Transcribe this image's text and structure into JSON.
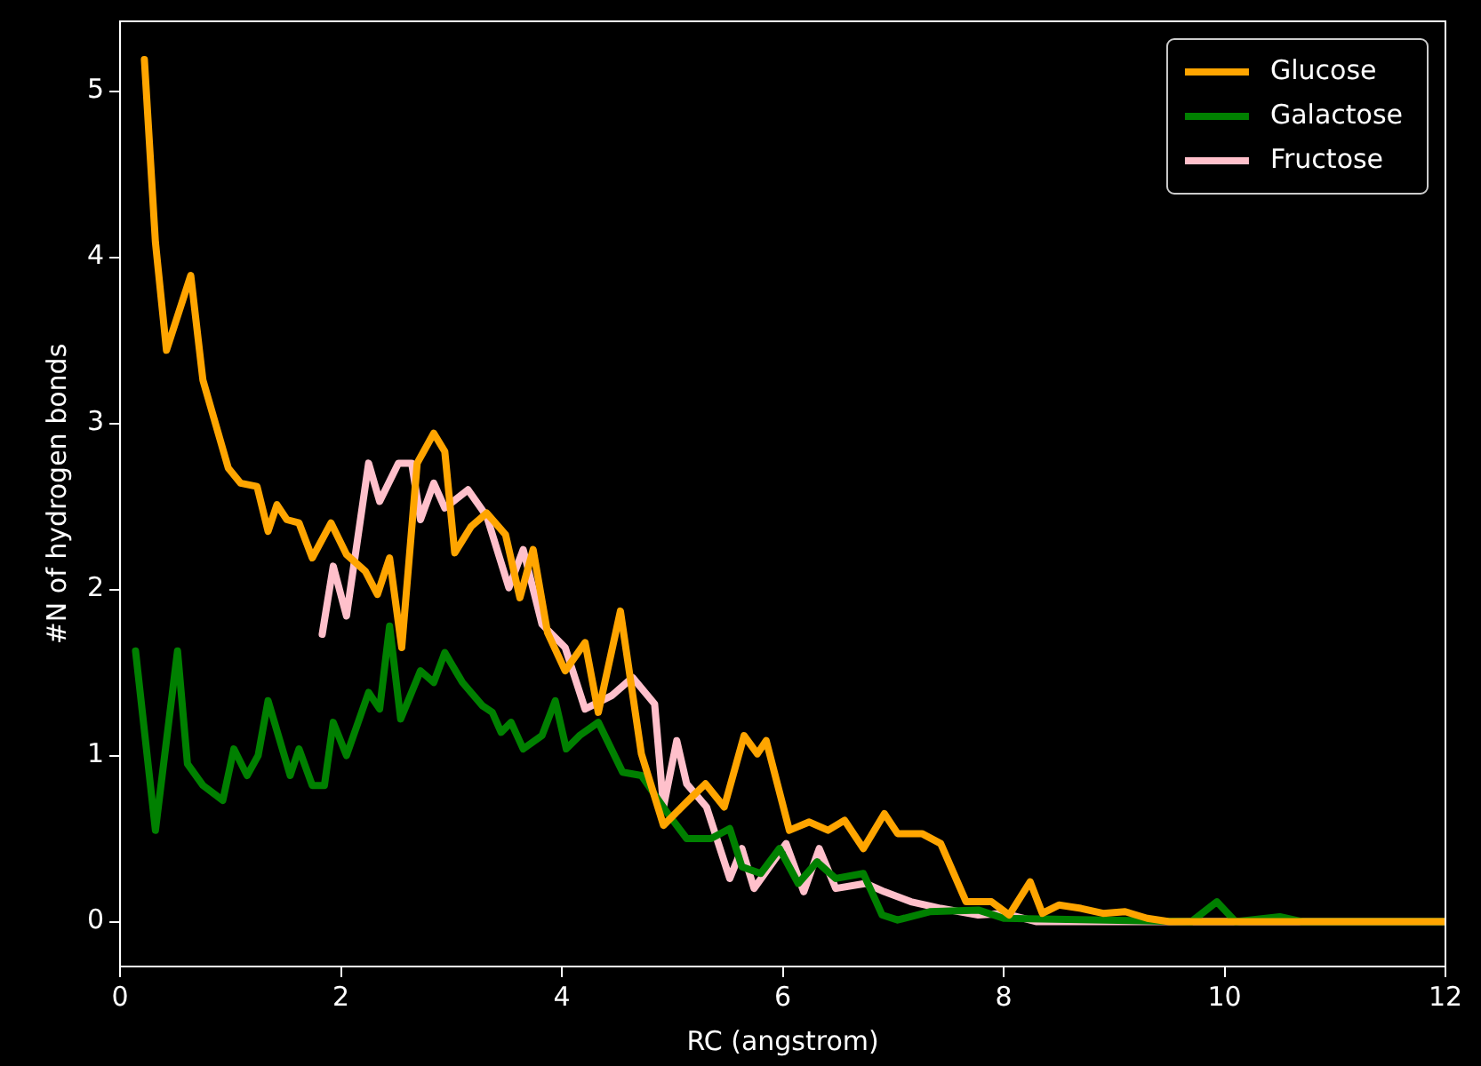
{
  "chart_data": {
    "type": "line",
    "xlabel": "RC (angstrom)",
    "ylabel": "#N of hydrogen bonds",
    "xlim": [
      0,
      12
    ],
    "xticks": [
      0,
      2,
      4,
      6,
      8,
      10,
      12
    ],
    "ylim": [
      -0.27,
      5.42
    ],
    "yticks": [
      0,
      1,
      2,
      3,
      4,
      5
    ],
    "grid": false,
    "legend": "top right",
    "marker": "none",
    "line_style": "solid",
    "series": [
      {
        "name": "Glucose",
        "color": "#ffa500",
        "x": [
          0.22,
          0.32,
          0.42,
          0.64,
          0.75,
          0.98,
          1.09,
          1.24,
          1.34,
          1.42,
          1.51,
          1.62,
          1.74,
          1.91,
          2.05,
          2.22,
          2.33,
          2.44,
          2.55,
          2.69,
          2.84,
          2.94,
          3.03,
          3.18,
          3.32,
          3.49,
          3.62,
          3.74,
          3.87,
          4.03,
          4.21,
          4.33,
          4.53,
          4.72,
          4.92,
          5.13,
          5.3,
          5.47,
          5.65,
          5.77,
          5.85,
          6.06,
          6.24,
          6.41,
          6.56,
          6.73,
          6.92,
          7.04,
          7.26,
          7.43,
          7.66,
          7.89,
          8.05,
          8.24,
          8.35,
          8.5,
          8.7,
          8.9,
          9.1,
          9.3,
          9.5,
          12
        ],
        "values": [
          5.19,
          4.09,
          3.44,
          3.89,
          3.26,
          2.73,
          2.64,
          2.62,
          2.35,
          2.51,
          2.42,
          2.4,
          2.19,
          2.4,
          2.21,
          2.11,
          1.97,
          2.19,
          1.65,
          2.76,
          2.94,
          2.83,
          2.22,
          2.38,
          2.46,
          2.33,
          1.95,
          2.24,
          1.74,
          1.51,
          1.68,
          1.26,
          1.87,
          1.01,
          0.58,
          0.72,
          0.83,
          0.69,
          1.12,
          1.01,
          1.09,
          0.55,
          0.6,
          0.55,
          0.61,
          0.44,
          0.65,
          0.53,
          0.53,
          0.47,
          0.12,
          0.12,
          0.04,
          0.24,
          0.05,
          0.1,
          0.08,
          0.05,
          0.06,
          0.02,
          0,
          0
        ]
      },
      {
        "name": "Galactose",
        "color": "#008000",
        "x": [
          0.14,
          0.32,
          0.52,
          0.61,
          0.75,
          0.93,
          1.03,
          1.15,
          1.25,
          1.34,
          1.54,
          1.62,
          1.74,
          1.85,
          1.93,
          2.05,
          2.25,
          2.35,
          2.44,
          2.54,
          2.72,
          2.84,
          2.94,
          3.1,
          3.28,
          3.37,
          3.45,
          3.54,
          3.65,
          3.82,
          3.94,
          4.04,
          4.16,
          4.33,
          4.55,
          4.72,
          4.96,
          5.13,
          5.35,
          5.52,
          5.63,
          5.8,
          5.97,
          6.14,
          6.31,
          6.48,
          6.73,
          6.9,
          7.04,
          7.33,
          7.77,
          8.0,
          9.7,
          9.93,
          10.1,
          10.5,
          10.7,
          12
        ],
        "values": [
          1.63,
          0.55,
          1.63,
          0.95,
          0.82,
          0.73,
          1.04,
          0.88,
          1.0,
          1.33,
          0.88,
          1.04,
          0.82,
          0.82,
          1.2,
          1.0,
          1.38,
          1.28,
          1.78,
          1.22,
          1.51,
          1.44,
          1.62,
          1.44,
          1.3,
          1.26,
          1.14,
          1.2,
          1.04,
          1.12,
          1.33,
          1.04,
          1.12,
          1.2,
          0.9,
          0.88,
          0.65,
          0.5,
          0.5,
          0.56,
          0.33,
          0.29,
          0.44,
          0.23,
          0.36,
          0.26,
          0.29,
          0.04,
          0.01,
          0.06,
          0.07,
          0.02,
          0,
          0.12,
          0,
          0.03,
          0,
          0
        ]
      },
      {
        "name": "Fructose",
        "color": "#ffc0cb",
        "x": [
          1.83,
          1.93,
          2.05,
          2.25,
          2.35,
          2.52,
          2.64,
          2.72,
          2.84,
          2.94,
          3.15,
          3.32,
          3.52,
          3.65,
          3.82,
          4.03,
          4.21,
          4.45,
          4.64,
          4.84,
          4.92,
          5.04,
          5.13,
          5.31,
          5.52,
          5.63,
          5.74,
          6.03,
          6.19,
          6.33,
          6.48,
          6.75,
          6.92,
          7.16,
          7.43,
          7.77,
          8.0,
          8.3,
          12
        ],
        "values": [
          1.73,
          2.14,
          1.84,
          2.76,
          2.53,
          2.76,
          2.76,
          2.42,
          2.64,
          2.49,
          2.6,
          2.44,
          2.01,
          2.24,
          1.79,
          1.65,
          1.28,
          1.36,
          1.47,
          1.31,
          0.69,
          1.09,
          0.83,
          0.69,
          0.26,
          0.44,
          0.2,
          0.47,
          0.18,
          0.44,
          0.2,
          0.23,
          0.18,
          0.12,
          0.08,
          0.04,
          0.05,
          0,
          0
        ]
      }
    ]
  }
}
